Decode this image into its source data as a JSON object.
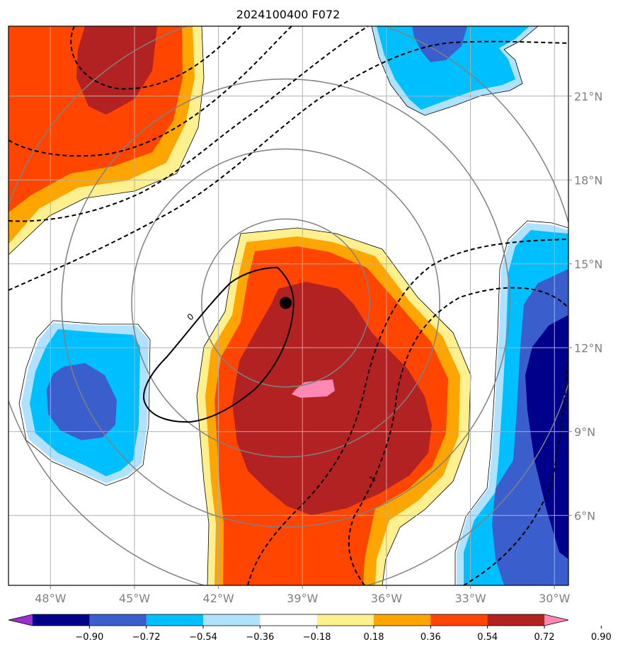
{
  "title": "2024100400 F072",
  "map": {
    "lon_range": [
      -49.5,
      -29.5
    ],
    "lat_range": [
      3.5,
      23.5
    ],
    "lon_ticks": [
      {
        "lon": -48,
        "label": "48°W"
      },
      {
        "lon": -45,
        "label": "45°W"
      },
      {
        "lon": -42,
        "label": "42°W"
      },
      {
        "lon": -39,
        "label": "39°W"
      },
      {
        "lon": -36,
        "label": "36°W"
      },
      {
        "lon": -33,
        "label": "33°W"
      },
      {
        "lon": -30,
        "label": "30°W"
      }
    ],
    "lat_ticks": [
      {
        "lat": 6,
        "label": "6°N"
      },
      {
        "lat": 9,
        "label": "9°N"
      },
      {
        "lat": 12,
        "label": "12°N"
      },
      {
        "lat": 15,
        "label": "15°N"
      },
      {
        "lat": 18,
        "label": "18°N"
      },
      {
        "lat": 21,
        "label": "21°N"
      }
    ],
    "storm_center": {
      "lon": -39.6,
      "lat": 13.6
    },
    "range_rings_deg": [
      3,
      5.5,
      8,
      10.5
    ],
    "contour_labels": [
      {
        "text": "0",
        "lon": -43.0,
        "lat": 13.1
      },
      {
        "text": "1",
        "lon": -36.5,
        "lat": 7.3
      }
    ]
  },
  "colorbar": {
    "levels": [
      "−0.90",
      "−0.72",
      "−0.54",
      "−0.36",
      "−0.18",
      "0.18",
      "0.36",
      "0.54",
      "0.72",
      "0.90"
    ],
    "colors": [
      "#9932cc",
      "#00008b",
      "#3a5fcd",
      "#00bfff",
      "#b0e2ff",
      "#ffffff",
      "#fff08f",
      "#ffa500",
      "#ff4500",
      "#b22222",
      "#ff88b4"
    ]
  },
  "fill_colors": {
    "n090": "#00008b",
    "n072": "#3a5fcd",
    "n054": "#00bfff",
    "n036": "#b0e2ff",
    "p018": "#fff08f",
    "p036": "#ffa500",
    "p054": "#ff4500",
    "p072": "#b22222",
    "p090": "#ff88b4"
  }
}
